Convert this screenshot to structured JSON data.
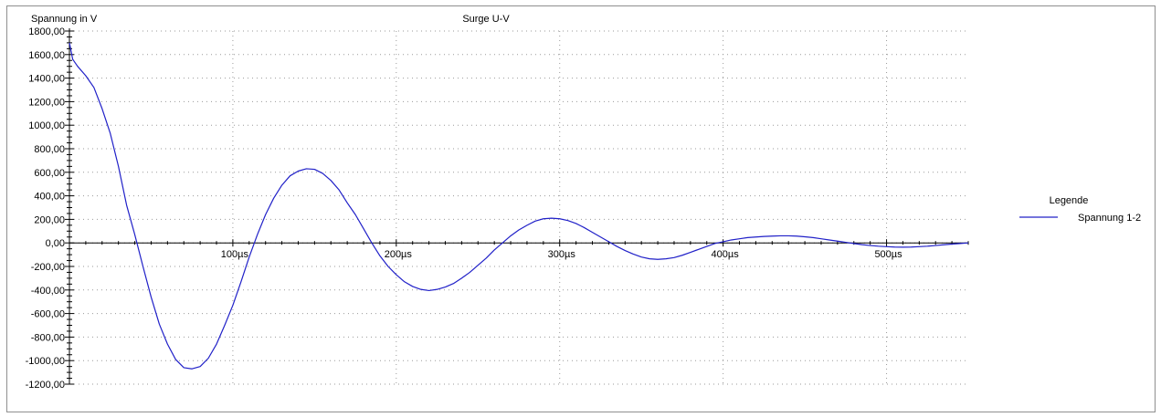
{
  "chart_data": {
    "type": "line",
    "title": "Surge U-V",
    "ylabel": "Spannung in V",
    "xlabel": "",
    "xlim": [
      0,
      550
    ],
    "ylim": [
      -1200,
      1800
    ],
    "x_unit": "µs",
    "y_ticks": [
      "1800,00",
      "1600,00",
      "1400,00",
      "1200,00",
      "1000,00",
      "800,00",
      "600,00",
      "400,00",
      "200,00",
      "0,00",
      "-200,00",
      "-400,00",
      "-600,00",
      "-800,00",
      "-1000,00",
      "-1200,00"
    ],
    "y_tick_values": [
      1800,
      1600,
      1400,
      1200,
      1000,
      800,
      600,
      400,
      200,
      0,
      -200,
      -400,
      -600,
      -800,
      -1000,
      -1200
    ],
    "x_ticks": [
      "100µs",
      "200µs",
      "300µs",
      "400µs",
      "500µs"
    ],
    "x_tick_values": [
      100,
      200,
      300,
      400,
      500
    ],
    "grid": true,
    "legend": {
      "title": "Legende",
      "position": "right"
    },
    "series": [
      {
        "name": "Spannung 1-2",
        "color": "#2020c8",
        "points": [
          [
            0,
            1700
          ],
          [
            2,
            1560
          ],
          [
            5,
            1500
          ],
          [
            10,
            1420
          ],
          [
            15,
            1320
          ],
          [
            20,
            1140
          ],
          [
            25,
            930
          ],
          [
            30,
            650
          ],
          [
            35,
            320
          ],
          [
            40,
            70
          ],
          [
            45,
            -200
          ],
          [
            50,
            -460
          ],
          [
            55,
            -690
          ],
          [
            60,
            -860
          ],
          [
            65,
            -990
          ],
          [
            70,
            -1060
          ],
          [
            75,
            -1070
          ],
          [
            80,
            -1050
          ],
          [
            85,
            -980
          ],
          [
            90,
            -860
          ],
          [
            95,
            -700
          ],
          [
            100,
            -530
          ],
          [
            105,
            -330
          ],
          [
            110,
            -120
          ],
          [
            115,
            70
          ],
          [
            120,
            240
          ],
          [
            125,
            380
          ],
          [
            130,
            490
          ],
          [
            135,
            570
          ],
          [
            140,
            610
          ],
          [
            145,
            630
          ],
          [
            150,
            625
          ],
          [
            155,
            590
          ],
          [
            160,
            530
          ],
          [
            165,
            450
          ],
          [
            170,
            340
          ],
          [
            175,
            240
          ],
          [
            180,
            120
          ],
          [
            185,
            0
          ],
          [
            190,
            -110
          ],
          [
            195,
            -200
          ],
          [
            200,
            -270
          ],
          [
            205,
            -330
          ],
          [
            210,
            -370
          ],
          [
            215,
            -395
          ],
          [
            220,
            -405
          ],
          [
            225,
            -395
          ],
          [
            230,
            -375
          ],
          [
            235,
            -345
          ],
          [
            240,
            -300
          ],
          [
            245,
            -250
          ],
          [
            250,
            -190
          ],
          [
            255,
            -130
          ],
          [
            260,
            -60
          ],
          [
            265,
            0
          ],
          [
            270,
            60
          ],
          [
            275,
            110
          ],
          [
            280,
            150
          ],
          [
            285,
            185
          ],
          [
            290,
            205
          ],
          [
            295,
            210
          ],
          [
            300,
            205
          ],
          [
            305,
            190
          ],
          [
            310,
            165
          ],
          [
            315,
            130
          ],
          [
            320,
            90
          ],
          [
            325,
            50
          ],
          [
            330,
            10
          ],
          [
            335,
            -30
          ],
          [
            340,
            -65
          ],
          [
            345,
            -95
          ],
          [
            350,
            -120
          ],
          [
            355,
            -135
          ],
          [
            360,
            -140
          ],
          [
            365,
            -135
          ],
          [
            370,
            -125
          ],
          [
            375,
            -105
          ],
          [
            380,
            -80
          ],
          [
            385,
            -55
          ],
          [
            390,
            -30
          ],
          [
            395,
            -5
          ],
          [
            400,
            10
          ],
          [
            405,
            25
          ],
          [
            410,
            35
          ],
          [
            415,
            45
          ],
          [
            420,
            50
          ],
          [
            425,
            55
          ],
          [
            430,
            58
          ],
          [
            435,
            60
          ],
          [
            440,
            60
          ],
          [
            445,
            58
          ],
          [
            450,
            52
          ],
          [
            455,
            45
          ],
          [
            460,
            35
          ],
          [
            465,
            25
          ],
          [
            470,
            15
          ],
          [
            475,
            5
          ],
          [
            480,
            -5
          ],
          [
            485,
            -15
          ],
          [
            490,
            -22
          ],
          [
            495,
            -28
          ],
          [
            500,
            -32
          ],
          [
            505,
            -35
          ],
          [
            510,
            -36
          ],
          [
            515,
            -35
          ],
          [
            520,
            -32
          ],
          [
            525,
            -28
          ],
          [
            530,
            -22
          ],
          [
            535,
            -16
          ],
          [
            540,
            -10
          ],
          [
            545,
            -5
          ],
          [
            550,
            0
          ]
        ]
      }
    ]
  }
}
